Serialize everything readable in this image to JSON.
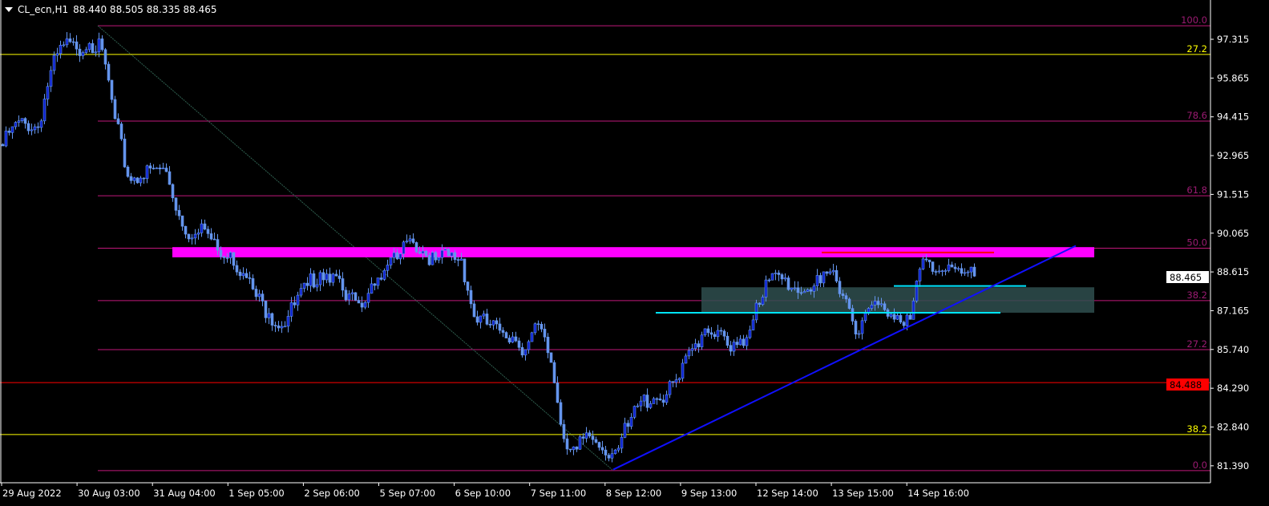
{
  "header": {
    "symbol": "CL_ecn,H1",
    "ohlc": "88.440 88.505 88.335 88.465"
  },
  "colors": {
    "background": "#000000",
    "bull_body": "#0a1fd0",
    "bear_body": "#6495ed",
    "wick": "#6495ed",
    "fib": "#c0187a",
    "fib_label": "#9b1b72",
    "yellow": "#ffff00",
    "red": "#ff0000",
    "zone": "#ff00ff",
    "cyan": "#00e5ff",
    "box": "#2f4f4f",
    "trend": "#1010ff"
  },
  "price_axis": {
    "labels": [
      "97.315",
      "95.865",
      "94.415",
      "92.965",
      "91.515",
      "90.065",
      "88.615",
      "87.165",
      "85.740",
      "84.290",
      "82.840",
      "81.390"
    ],
    "current_price": "88.465",
    "alert_price": "84.488"
  },
  "time_axis": {
    "labels": [
      "29 Aug 2022",
      "30 Aug 03:00",
      "31 Aug 04:00",
      "1 Sep 05:00",
      "2 Sep 06:00",
      "5 Sep 07:00",
      "6 Sep 10:00",
      "7 Sep 11:00",
      "8 Sep 12:00",
      "9 Sep 13:00",
      "12 Sep 14:00",
      "13 Sep 15:00",
      "14 Sep 16:00"
    ]
  },
  "fibonacci": {
    "levels": [
      {
        "label": "100.0",
        "price": 97.82
      },
      {
        "label": "78.6",
        "price": 94.26
      },
      {
        "label": "61.8",
        "price": 91.47
      },
      {
        "label": "50.0",
        "price": 89.51
      },
      {
        "label": "38.2",
        "price": 87.55
      },
      {
        "label": "27.2",
        "price": 85.72
      },
      {
        "label": "0.0",
        "price": 81.2
      }
    ]
  },
  "yellow_levels": [
    {
      "label": "27.2",
      "price": 96.75
    },
    {
      "label": "38.2",
      "price": 82.55
    }
  ],
  "chart_data": {
    "type": "candlestick",
    "timeframe": "H1",
    "grid": false,
    "ylim": [
      81.0,
      98.3
    ],
    "closes": [
      93.09,
      94.05,
      94.17,
      94.02,
      96.15,
      97.11,
      96.95,
      97.16,
      96.93,
      94.35,
      92.19,
      92.13,
      92.49,
      92.37,
      90.72,
      89.89,
      90.22,
      89.43,
      89.35,
      88.57,
      87.7,
      87.07,
      86.59,
      87.39,
      88.11,
      88.6,
      88.54,
      87.58,
      87.46,
      88.18,
      88.68,
      89.11,
      89.86,
      89.4,
      89.07,
      89.22,
      89.11,
      86.95,
      86.67,
      86.44,
      86.2,
      85.72,
      86.67,
      85.24,
      82.39,
      82.0,
      82.49,
      81.97,
      81.97,
      82.85,
      83.8,
      83.89,
      84.04,
      84.65,
      85.76,
      86.5,
      86.44,
      85.66,
      85.87,
      87.46,
      88.32,
      88.36,
      88.03,
      87.96,
      88.21,
      88.68,
      87.61,
      86.32,
      87.39,
      87.21,
      87.0,
      86.85,
      89.11,
      88.63,
      88.89,
      88.57,
      88.465
    ],
    "horizontal_lines": {
      "red": 84.488
    },
    "resistance_zone": [
      89.17,
      89.55
    ],
    "red_segment": 89.35,
    "cyan_segments": [
      87.1,
      88.1
    ],
    "range_box": [
      87.1,
      88.05
    ],
    "trendline": [
      81.24,
      89.6
    ]
  }
}
